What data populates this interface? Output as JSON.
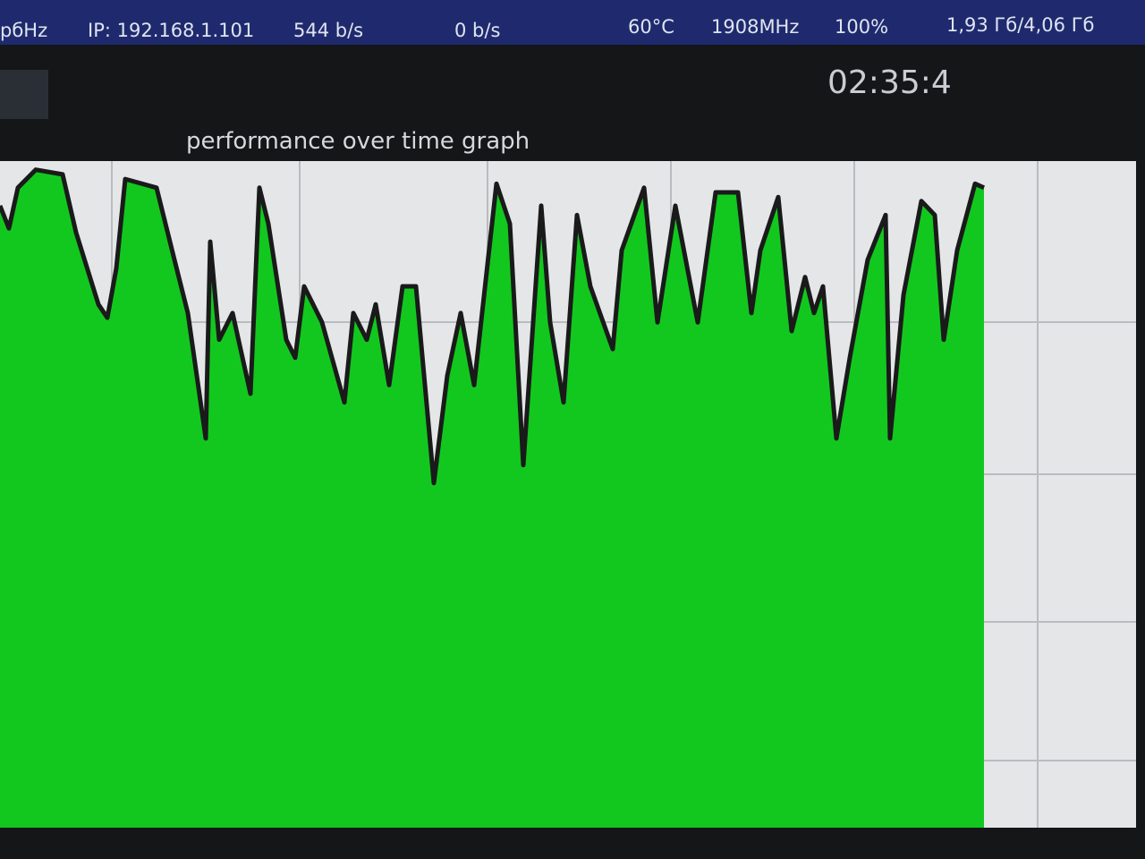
{
  "status_bar": {
    "left": "рбHz",
    "ip": "IP: 192.168.1.101",
    "download": "544 b/s",
    "upload": "0 b/s",
    "temp": "60°C",
    "cpu_freq": "1908MHz",
    "cpu_load": "100%",
    "memory": "1,93 Гб/4,06 Гб"
  },
  "clock": "02:35:4",
  "chart_data": {
    "type": "area",
    "title": "performance over time graph",
    "color": "#12c81e",
    "line_color": "#1a1a1a",
    "xlim": [
      0,
      1270
    ],
    "ylim": [
      0,
      100
    ],
    "x": [
      0,
      10,
      20,
      40,
      70,
      85,
      110,
      120,
      130,
      140,
      175,
      195,
      210,
      230,
      235,
      245,
      260,
      280,
      290,
      300,
      320,
      330,
      340,
      360,
      385,
      395,
      410,
      420,
      435,
      450,
      465,
      485,
      500,
      515,
      530,
      555,
      570,
      585,
      605,
      615,
      630,
      645,
      660,
      685,
      695,
      720,
      735,
      755,
      780,
      800,
      825,
      840,
      850,
      870,
      885,
      900,
      910,
      920,
      935,
      950,
      970,
      990,
      995,
      1010,
      1030,
      1045,
      1055,
      1070,
      1090,
      1100
    ],
    "values": [
      93.3,
      89.9,
      96,
      98.7,
      98,
      89.3,
      78.5,
      76.5,
      83.9,
      97.3,
      96,
      85.2,
      77.2,
      58.4,
      87.9,
      73.2,
      77.2,
      65.1,
      96,
      90.6,
      73.2,
      70.5,
      81.2,
      75.8,
      63.8,
      77.2,
      73.2,
      78.5,
      66.4,
      81.2,
      81.2,
      51.7,
      67.8,
      77.2,
      66.4,
      96.6,
      90.6,
      54.4,
      93.3,
      75.8,
      63.8,
      91.9,
      81.2,
      71.8,
      86.6,
      96,
      75.8,
      93.3,
      75.8,
      95.3,
      95.3,
      77.2,
      86.6,
      94.6,
      74.5,
      82.6,
      77.2,
      81.2,
      58.4,
      70.5,
      85.2,
      91.9,
      58.4,
      79.9,
      94,
      91.9,
      73.2,
      86.6,
      96.6,
      96
    ]
  }
}
